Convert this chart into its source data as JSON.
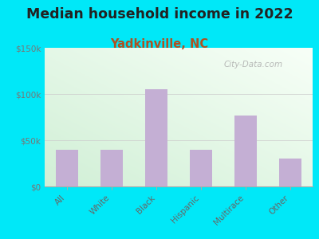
{
  "title": "Median household income in 2022",
  "subtitle": "Yadkinville, NC",
  "categories": [
    "All",
    "White",
    "Black",
    "Hispanic",
    "Multirace",
    "Other"
  ],
  "values": [
    40000,
    40000,
    105000,
    40000,
    77000,
    30000
  ],
  "bar_color": "#c4afd4",
  "title_fontsize": 12.5,
  "subtitle_fontsize": 10.5,
  "subtitle_color": "#b05020",
  "title_color": "#222222",
  "bg_outer": "#00e8f8",
  "tick_color": "#777777",
  "label_color": "#666666",
  "ylim": [
    0,
    150000
  ],
  "yticks": [
    0,
    50000,
    100000,
    150000
  ],
  "ytick_labels": [
    "$0",
    "$50k",
    "$100k",
    "$150k"
  ],
  "watermark": "City-Data.com"
}
